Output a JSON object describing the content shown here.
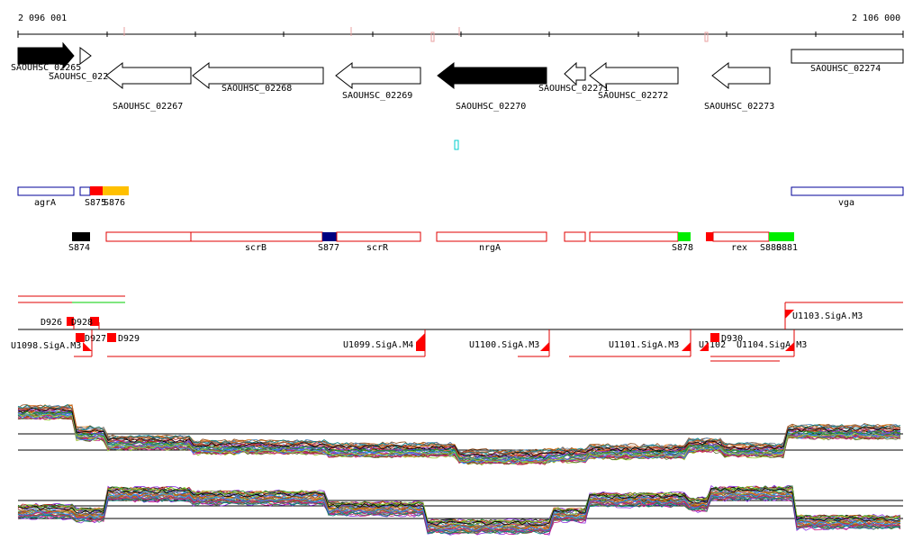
{
  "ruler": {
    "start_label": "2 096 001",
    "end_label": "2 106 000"
  },
  "genes": [
    {
      "name": "SAOUHSC_02265",
      "strand": "+",
      "filled": true
    },
    {
      "name": "SAOUHSC_02266",
      "strand": "+",
      "filled": false
    },
    {
      "name": "SAOUHSC_02267",
      "strand": "-",
      "filled": false
    },
    {
      "name": "SAOUHSC_02268",
      "strand": "-",
      "filled": false
    },
    {
      "name": "SAOUHSC_02269",
      "strand": "-",
      "filled": false
    },
    {
      "name": "SAOUHSC_02270",
      "strand": "-",
      "filled": true
    },
    {
      "name": "SAOUHSC_02271",
      "strand": "-",
      "filled": false
    },
    {
      "name": "SAOUHSC_02272",
      "strand": "-",
      "filled": false
    },
    {
      "name": "SAOUHSC_02273",
      "strand": "-",
      "filled": false
    },
    {
      "name": "SAOUHSC_02274",
      "strand": "+",
      "filled": false
    }
  ],
  "features_top": [
    {
      "name": "agrA"
    },
    {
      "name": "S875"
    },
    {
      "name": "S876"
    },
    {
      "name": "vga"
    }
  ],
  "features_mid": [
    {
      "name": "S874"
    },
    {
      "name": "scrB"
    },
    {
      "name": "S877"
    },
    {
      "name": "scrR"
    },
    {
      "name": "nrgA"
    },
    {
      "name": "S878"
    },
    {
      "name": "rex"
    },
    {
      "name": "S880"
    },
    {
      "name": "S881"
    }
  ],
  "promoters": [
    {
      "name": "D926"
    },
    {
      "name": "D928"
    },
    {
      "name": "D927"
    },
    {
      "name": "D929"
    },
    {
      "name": "U1098.SigA.M3"
    },
    {
      "name": "U1099.SigA.M4"
    },
    {
      "name": "U1100.SigA.M3"
    },
    {
      "name": "U1101.SigA.M3"
    },
    {
      "name": "U1102"
    },
    {
      "name": "D930"
    },
    {
      "name": "U1104.SigA.M3"
    },
    {
      "name": "U1103.SigA.M3"
    }
  ],
  "colors": {
    "red": "#ff0000",
    "navy": "#000080",
    "green": "#00ee00",
    "orange": "#ffc000",
    "blue_outline": "#000099",
    "cyan": "#00cccc"
  }
}
